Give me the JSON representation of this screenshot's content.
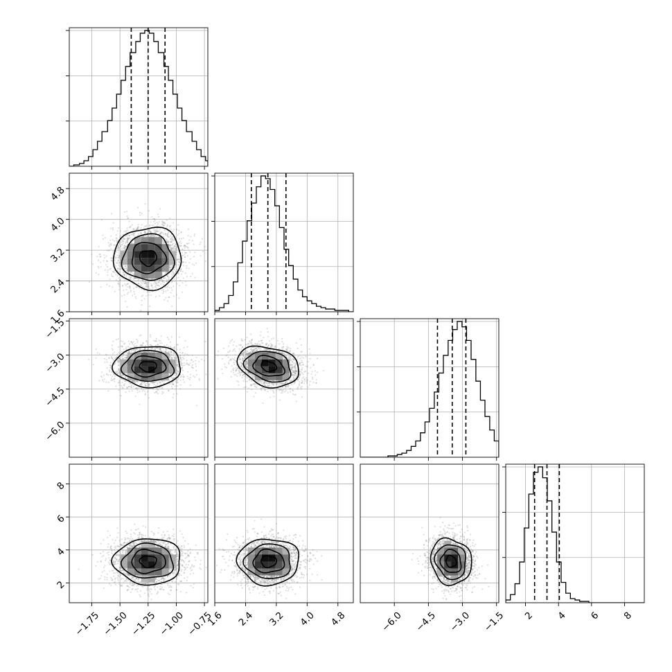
{
  "chart_data": {
    "type": "corner",
    "title": "",
    "parameters": [
      {
        "axis_label": "",
        "mean": -1.25,
        "sd": 0.15,
        "range": [
          -1.95,
          -0.72
        ],
        "ticks": [
          -1.75,
          -1.5,
          -1.25,
          -1.0,
          -0.75
        ],
        "tick_labels": [
          "−1.75",
          "−1.50",
          "−1.25",
          "−1.00",
          "−0.75"
        ],
        "quantiles": [
          -1.4,
          -1.25,
          -1.1
        ],
        "hist_bins": [
          -1.95,
          -1.91,
          -1.86,
          -1.82,
          -1.78,
          -1.74,
          -1.7,
          -1.66,
          -1.61,
          -1.57,
          -1.53,
          -1.49,
          -1.45,
          -1.41,
          -1.36,
          -1.32,
          -1.28,
          -1.24,
          -1.2,
          -1.16,
          -1.11,
          -1.07,
          -1.03,
          -0.99,
          -0.95,
          -0.91,
          -0.86,
          -0.82,
          -0.78,
          -0.74,
          -0.72
        ],
        "hist_counts": [
          0,
          1,
          2,
          4,
          7,
          12,
          18,
          25,
          33,
          42,
          52,
          62,
          72,
          82,
          90,
          96,
          98,
          96,
          90,
          82,
          72,
          62,
          52,
          42,
          33,
          25,
          18,
          12,
          7,
          4
        ]
      },
      {
        "axis_label": "",
        "mean": 3.0,
        "sd": 0.4,
        "range": [
          1.6,
          5.2
        ],
        "ticks": [
          1.6,
          2.4,
          3.2,
          4.0,
          4.8
        ],
        "tick_labels": [
          "1.6",
          "2.4",
          "3.2",
          "4.0",
          "4.8"
        ],
        "quantiles": [
          2.55,
          2.98,
          3.45
        ],
        "hist_bins": [
          1.6,
          1.72,
          1.84,
          1.96,
          2.08,
          2.2,
          2.32,
          2.44,
          2.56,
          2.68,
          2.8,
          2.92,
          3.04,
          3.16,
          3.28,
          3.4,
          3.52,
          3.64,
          3.76,
          3.88,
          4.0,
          4.12,
          4.24,
          4.36,
          4.48,
          4.6,
          4.72,
          4.84,
          4.96,
          5.08,
          5.2
        ],
        "hist_counts": [
          1,
          3,
          6,
          12,
          22,
          36,
          52,
          67,
          80,
          92,
          100,
          98,
          90,
          78,
          62,
          46,
          34,
          24,
          16,
          11,
          8,
          6,
          4,
          3,
          2,
          2,
          1,
          1,
          1,
          0
        ]
      },
      {
        "axis_label": "",
        "mean": -3.5,
        "sd": 0.45,
        "range": [
          -7.5,
          -1.4
        ],
        "ticks": [
          -6.0,
          -4.5,
          -3.0,
          -1.5
        ],
        "tick_labels": [
          "−6.0",
          "−4.5",
          "−3.0",
          "−1.5"
        ],
        "quantiles": [
          -4.1,
          -3.45,
          -2.85
        ],
        "hist_bins": [
          -7.5,
          -7.3,
          -7.09,
          -6.89,
          -6.69,
          -6.48,
          -6.28,
          -6.07,
          -5.87,
          -5.67,
          -5.46,
          -5.26,
          -5.06,
          -4.85,
          -4.65,
          -4.45,
          -4.24,
          -4.04,
          -3.84,
          -3.63,
          -3.43,
          -3.23,
          -3.02,
          -2.82,
          -2.62,
          -2.41,
          -2.21,
          -2.01,
          -1.8,
          -1.6,
          -1.4
        ],
        "hist_counts": [
          0,
          0,
          0,
          0,
          0,
          0,
          1,
          1,
          2,
          3,
          5,
          8,
          12,
          18,
          26,
          36,
          48,
          62,
          75,
          86,
          94,
          100,
          96,
          86,
          72,
          56,
          42,
          30,
          20,
          12
        ]
      },
      {
        "axis_label": "",
        "mean": 3.3,
        "sd": 0.7,
        "range": [
          0.8,
          9.2
        ],
        "ticks": [
          2,
          4,
          6,
          8
        ],
        "tick_labels": [
          "2",
          "4",
          "6",
          "8"
        ],
        "quantiles": [
          2.55,
          3.3,
          4.05
        ],
        "hist_bins": [
          0.8,
          1.08,
          1.36,
          1.64,
          1.92,
          2.2,
          2.48,
          2.76,
          3.04,
          3.32,
          3.6,
          3.88,
          4.16,
          4.44,
          4.72,
          5.0,
          5.28,
          5.56,
          5.84,
          6.12,
          6.4,
          6.68,
          6.96,
          7.24,
          7.52,
          7.8,
          8.08,
          8.36,
          8.64,
          8.92,
          9.2
        ],
        "hist_counts": [
          2,
          6,
          14,
          30,
          55,
          80,
          96,
          100,
          92,
          75,
          52,
          30,
          15,
          7,
          3,
          2,
          1,
          1,
          0,
          0,
          0,
          0,
          0,
          0,
          0,
          0,
          0,
          0,
          0,
          0
        ]
      }
    ],
    "n_samples_shown": 2400,
    "contour_levels_sigma": [
      0.5,
      1.0,
      1.5,
      2.0
    ],
    "grid": true,
    "legend": "none",
    "colors": {
      "scatter": "#808080",
      "lines": "#000000",
      "density_dark": "#000000",
      "density_light": "#ffffff"
    }
  }
}
